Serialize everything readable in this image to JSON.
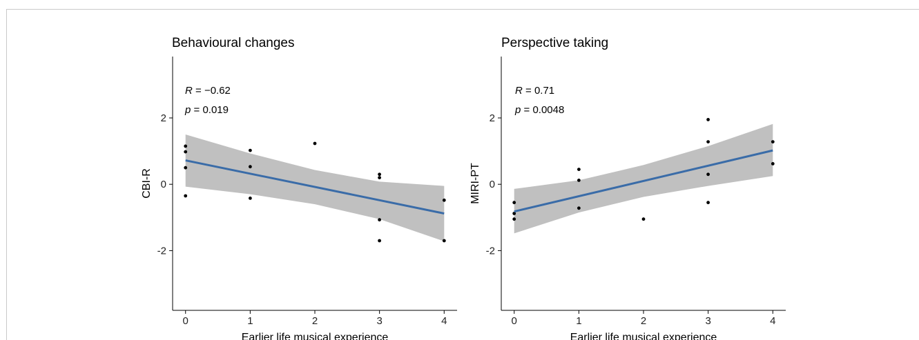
{
  "chart_data": [
    {
      "type": "scatter",
      "title": "Behavioural changes",
      "xlabel": "Earlier life musical experience",
      "ylabel": "CBI-R",
      "xlim": [
        -0.2,
        4.2
      ],
      "ylim": [
        -3.8,
        3.85
      ],
      "xticks": [
        0,
        1,
        2,
        3,
        4
      ],
      "yticks": [
        -2,
        0,
        2
      ],
      "xtick_labels": [
        "0",
        "1",
        "2",
        "3",
        "4"
      ],
      "ytick_labels": [
        "-2",
        "0",
        "2"
      ],
      "annotation": {
        "r_label": "R",
        "r_text": " = −0.62",
        "p_label": "p",
        "p_text": " = 0.019"
      },
      "points": [
        {
          "x": 0,
          "y": 1.15
        },
        {
          "x": 0,
          "y": 0.98
        },
        {
          "x": 0,
          "y": 0.5
        },
        {
          "x": 0,
          "y": -0.35
        },
        {
          "x": 1,
          "y": 1.02
        },
        {
          "x": 1,
          "y": 0.53
        },
        {
          "x": 1,
          "y": -0.42
        },
        {
          "x": 2,
          "y": 1.23
        },
        {
          "x": 3,
          "y": 0.3
        },
        {
          "x": 3,
          "y": 0.2
        },
        {
          "x": 3,
          "y": -1.07
        },
        {
          "x": 3,
          "y": -1.7
        },
        {
          "x": 4,
          "y": -0.48
        },
        {
          "x": 4,
          "y": -1.7
        }
      ],
      "fit": {
        "x": [
          0,
          1,
          2,
          3,
          4
        ],
        "y": [
          0.72,
          0.32,
          -0.08,
          -0.48,
          -0.88
        ],
        "lower": [
          -0.07,
          -0.3,
          -0.6,
          -1.05,
          -1.72
        ],
        "upper": [
          1.5,
          0.93,
          0.43,
          0.08,
          -0.05
        ]
      },
      "colors": {
        "line": "#3a6ca8",
        "band": "#c0c0c0",
        "point": "#000000"
      }
    },
    {
      "type": "scatter",
      "title": "Perspective taking",
      "xlabel": "Earlier life musical experience",
      "ylabel": "MIRI-PT",
      "xlim": [
        -0.2,
        4.2
      ],
      "ylim": [
        -3.8,
        3.85
      ],
      "xticks": [
        0,
        1,
        2,
        3,
        4
      ],
      "yticks": [
        -2,
        0,
        2
      ],
      "xtick_labels": [
        "0",
        "1",
        "2",
        "3",
        "4"
      ],
      "ytick_labels": [
        "-2",
        "0",
        "2"
      ],
      "annotation": {
        "r_label": "R",
        "r_text": " = 0.71",
        "p_label": "p",
        "p_text": " = 0.0048"
      },
      "points": [
        {
          "x": 0,
          "y": -0.55
        },
        {
          "x": 0,
          "y": -0.88
        },
        {
          "x": 0,
          "y": -1.05
        },
        {
          "x": 1,
          "y": 0.45
        },
        {
          "x": 1,
          "y": 0.12
        },
        {
          "x": 1,
          "y": -0.72
        },
        {
          "x": 2,
          "y": -1.05
        },
        {
          "x": 3,
          "y": 1.95
        },
        {
          "x": 3,
          "y": 1.28
        },
        {
          "x": 3,
          "y": 0.3
        },
        {
          "x": 3,
          "y": -0.55
        },
        {
          "x": 4,
          "y": 1.28
        },
        {
          "x": 4,
          "y": 0.62
        }
      ],
      "fit": {
        "x": [
          0,
          1,
          2,
          3,
          4
        ],
        "y": [
          -0.82,
          -0.36,
          0.1,
          0.56,
          1.02
        ],
        "lower": [
          -1.48,
          -0.85,
          -0.38,
          -0.05,
          0.25
        ],
        "upper": [
          -0.14,
          0.12,
          0.58,
          1.15,
          1.82
        ]
      },
      "colors": {
        "line": "#3a6ca8",
        "band": "#c0c0c0",
        "point": "#000000"
      }
    }
  ]
}
